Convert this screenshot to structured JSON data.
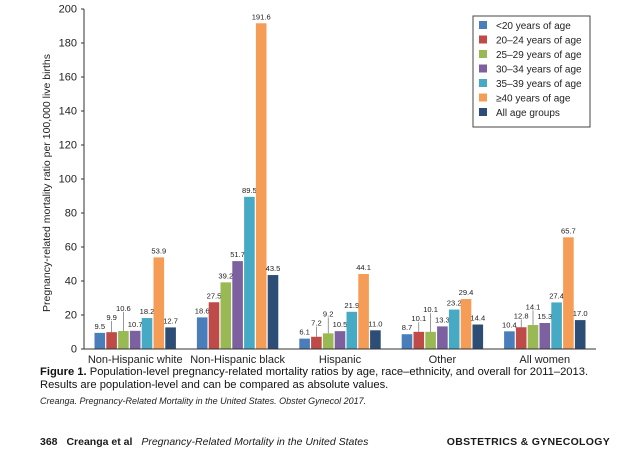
{
  "chart_data": {
    "type": "bar",
    "title": "",
    "xlabel": "",
    "ylabel": "Pregnancy-related mortality ratio per 100,000 live births",
    "ylim": [
      0,
      200
    ],
    "yticks": [
      0,
      20,
      40,
      60,
      80,
      100,
      120,
      140,
      160,
      180,
      200
    ],
    "grid": false,
    "legend_position": "top-right",
    "categories": [
      "Non-Hispanic white",
      "Non-Hispanic black",
      "Hispanic",
      "Other",
      "All women"
    ],
    "series": [
      {
        "name": "<20 years of age",
        "color": "#4a7ebb",
        "values": [
          9.5,
          18.6,
          6.1,
          8.7,
          10.4
        ],
        "labels": [
          "9.5",
          "18.6",
          "6.1",
          "8.7",
          "10.4"
        ]
      },
      {
        "name": "20–24 years of age",
        "color": "#be4b48",
        "values": [
          9.9,
          27.5,
          7.2,
          10.1,
          12.8
        ],
        "labels": [
          "9.9",
          "27.5",
          "7.2",
          "10.1",
          "12.8"
        ]
      },
      {
        "name": "25–29 years of age",
        "color": "#98b954",
        "values": [
          10.6,
          39.2,
          9.2,
          10.1,
          14.1
        ],
        "labels": [
          "10.6",
          "39.2",
          "9.2",
          "10.1",
          "14.1"
        ]
      },
      {
        "name": "30–34 years of age",
        "color": "#7d60a0",
        "values": [
          10.7,
          51.7,
          10.5,
          13.3,
          15.3
        ],
        "labels": [
          "10.7",
          "51.7",
          "10.5",
          "13.3",
          "15.3"
        ]
      },
      {
        "name": "35–39 years of age",
        "color": "#46aac5",
        "values": [
          18.2,
          89.5,
          21.9,
          23.2,
          27.4
        ],
        "labels": [
          "18.2",
          "89.5",
          "21.9",
          "23.2",
          "27.4"
        ]
      },
      {
        "name": "≥40 years of age",
        "color": "#f59d56",
        "values": [
          53.9,
          191.6,
          44.1,
          29.4,
          65.7
        ],
        "labels": [
          "53.9",
          "191.6",
          "44.1",
          "29.4",
          "65.7"
        ]
      },
      {
        "name": "All age groups",
        "color": "#2c4d75",
        "values": [
          12.7,
          43.5,
          11.0,
          14.4,
          17.0
        ],
        "labels": [
          "12.7",
          "43.5",
          "11.0",
          "14.4",
          "17.0"
        ]
      }
    ]
  },
  "caption": {
    "label": "Figure 1.",
    "text": "Population-level pregnancy-related mortality ratios by age, race–ethnicity, and overall for 2011–2013. Results are population-level and can be compared as absolute values."
  },
  "source": "Creanga. Pregnancy-Related Mortality in the United States. Obstet Gynecol 2017.",
  "footer": {
    "page": "368",
    "author": "Creanga et al",
    "running_title": "Pregnancy-Related Mortality in the United States",
    "journal": "OBSTETRICS & GYNECOLOGY"
  }
}
